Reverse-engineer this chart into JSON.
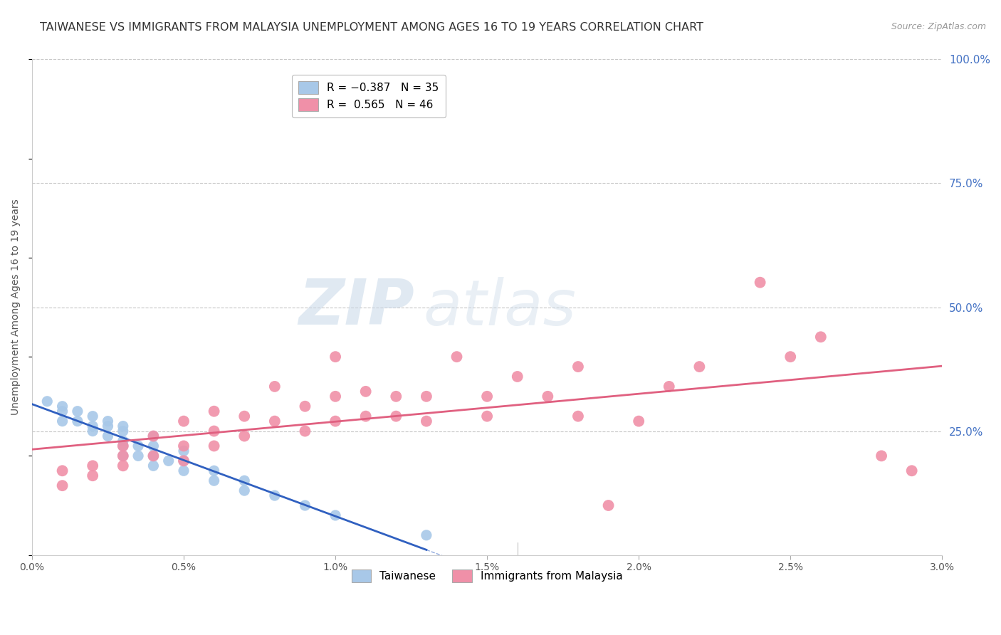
{
  "title": "TAIWANESE VS IMMIGRANTS FROM MALAYSIA UNEMPLOYMENT AMONG AGES 16 TO 19 YEARS CORRELATION CHART",
  "source": "Source: ZipAtlas.com",
  "ylabel": "Unemployment Among Ages 16 to 19 years",
  "xlim": [
    0.0,
    0.03
  ],
  "ylim": [
    0.0,
    1.0
  ],
  "xtick_labels": [
    "0.0%",
    "0.5%",
    "1.0%",
    "1.5%",
    "2.0%",
    "2.5%",
    "3.0%"
  ],
  "xtick_vals": [
    0.0,
    0.005,
    0.01,
    0.015,
    0.02,
    0.025,
    0.03
  ],
  "ytick_right_labels": [
    "100.0%",
    "75.0%",
    "50.0%",
    "25.0%"
  ],
  "ytick_right_vals": [
    1.0,
    0.75,
    0.5,
    0.25
  ],
  "watermark_zip": "ZIP",
  "watermark_atlas": "atlas",
  "series_taiwanese": {
    "color": "#a8c8e8",
    "x": [
      0.0005,
      0.001,
      0.001,
      0.001,
      0.0015,
      0.0015,
      0.002,
      0.002,
      0.002,
      0.0025,
      0.0025,
      0.0025,
      0.003,
      0.003,
      0.003,
      0.003,
      0.003,
      0.0035,
      0.0035,
      0.004,
      0.004,
      0.004,
      0.004,
      0.0045,
      0.005,
      0.005,
      0.005,
      0.006,
      0.006,
      0.007,
      0.007,
      0.008,
      0.009,
      0.01,
      0.013
    ],
    "y": [
      0.31,
      0.27,
      0.29,
      0.3,
      0.27,
      0.29,
      0.25,
      0.26,
      0.28,
      0.24,
      0.26,
      0.27,
      0.2,
      0.22,
      0.23,
      0.25,
      0.26,
      0.2,
      0.22,
      0.18,
      0.2,
      0.22,
      0.24,
      0.19,
      0.17,
      0.19,
      0.21,
      0.15,
      0.17,
      0.13,
      0.15,
      0.12,
      0.1,
      0.08,
      0.04
    ]
  },
  "series_malaysia": {
    "color": "#f090a8",
    "x": [
      0.001,
      0.001,
      0.002,
      0.002,
      0.003,
      0.003,
      0.003,
      0.004,
      0.004,
      0.005,
      0.005,
      0.005,
      0.006,
      0.006,
      0.006,
      0.007,
      0.007,
      0.008,
      0.008,
      0.009,
      0.009,
      0.01,
      0.01,
      0.01,
      0.011,
      0.011,
      0.012,
      0.012,
      0.013,
      0.013,
      0.014,
      0.015,
      0.015,
      0.016,
      0.017,
      0.018,
      0.018,
      0.019,
      0.02,
      0.021,
      0.022,
      0.024,
      0.025,
      0.026,
      0.028,
      0.029
    ],
    "y": [
      0.14,
      0.17,
      0.16,
      0.18,
      0.18,
      0.2,
      0.22,
      0.2,
      0.24,
      0.19,
      0.22,
      0.27,
      0.22,
      0.25,
      0.29,
      0.24,
      0.28,
      0.27,
      0.34,
      0.25,
      0.3,
      0.27,
      0.32,
      0.4,
      0.28,
      0.33,
      0.28,
      0.32,
      0.27,
      0.32,
      0.4,
      0.28,
      0.32,
      0.36,
      0.32,
      0.28,
      0.38,
      0.1,
      0.27,
      0.34,
      0.38,
      0.55,
      0.4,
      0.44,
      0.2,
      0.17
    ]
  },
  "line_taiwanese": {
    "color": "#3060c0",
    "x_solid_end": 0.013,
    "x_dash_end": 0.022
  },
  "line_malaysia": {
    "color": "#e06080",
    "x_start": 0.0,
    "x_end": 0.03
  },
  "background_color": "#ffffff",
  "grid_color": "#c8c8c8",
  "title_fontsize": 11.5,
  "axis_label_fontsize": 10,
  "tick_fontsize": 10,
  "right_tick_color": "#4472c4"
}
